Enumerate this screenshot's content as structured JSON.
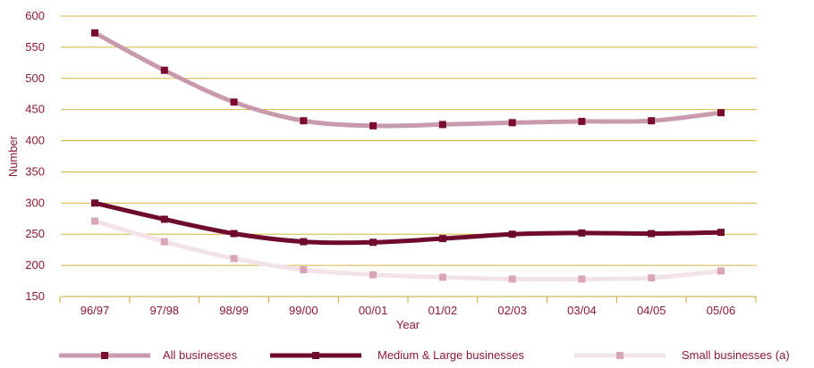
{
  "colors": {
    "grid": "#d8b440",
    "axis": "#c9a63a",
    "text": "#8b1a36"
  },
  "chart_data": {
    "type": "line",
    "title": "",
    "xlabel": "Year",
    "ylabel": "Number",
    "ylim": [
      150,
      600
    ],
    "yticks": [
      150,
      200,
      250,
      300,
      350,
      400,
      450,
      500,
      550,
      600
    ],
    "categories": [
      "96/97",
      "97/98",
      "98/99",
      "99/00",
      "00/01",
      "01/02",
      "02/03",
      "03/04",
      "04/05",
      "05/06"
    ],
    "grid": true,
    "legend_position": "bottom",
    "series": [
      {
        "name": "All businesses",
        "color": "#c99aae",
        "marker_color": "#7a0a2e",
        "values": [
          573,
          513,
          462,
          432,
          424,
          426,
          429,
          431,
          432,
          445
        ]
      },
      {
        "name": "Medium & Large businesses",
        "color": "#6e0a2c",
        "marker_color": "#6e0a2c",
        "values": [
          300,
          274,
          251,
          238,
          237,
          243,
          250,
          252,
          251,
          253
        ]
      },
      {
        "name": "Small businesses (a)",
        "color": "#f1e3e7",
        "marker_color": "#d8a6b8",
        "values": [
          271,
          238,
          211,
          193,
          185,
          181,
          178,
          178,
          180,
          191
        ]
      }
    ]
  }
}
